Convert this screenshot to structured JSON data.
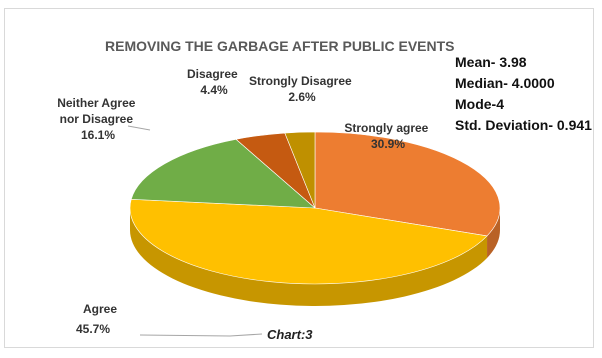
{
  "chart_data": {
    "type": "pie",
    "title": "REMOVING THE GARBAGE AFTER PUBLIC EVENTS",
    "caption": "Chart:3",
    "slices": [
      {
        "label_lines": [
          "Strongly agree"
        ],
        "value_text": "30.9%",
        "value": 30.9,
        "color": "#ED7D31"
      },
      {
        "label_lines": [
          "Agree"
        ],
        "value_text": "45.7%",
        "value": 45.7,
        "color": "#FFC000"
      },
      {
        "label_lines": [
          "Neither Agree",
          "nor Disagree"
        ],
        "value_text": "16.1%",
        "value": 16.1,
        "color": "#70AD47"
      },
      {
        "label_lines": [
          "Disagree"
        ],
        "value_text": "4.4%",
        "value": 4.4,
        "color": "#C55A11"
      },
      {
        "label_lines": [
          "Strongly Disagree"
        ],
        "value_text": "2.6%",
        "value": 2.6,
        "color": "#BF9000"
      }
    ],
    "stats": [
      "Mean-  3.98",
      "Median- 4.0000",
      "Mode-4",
      "Std. Deviation- 0.941"
    ]
  }
}
